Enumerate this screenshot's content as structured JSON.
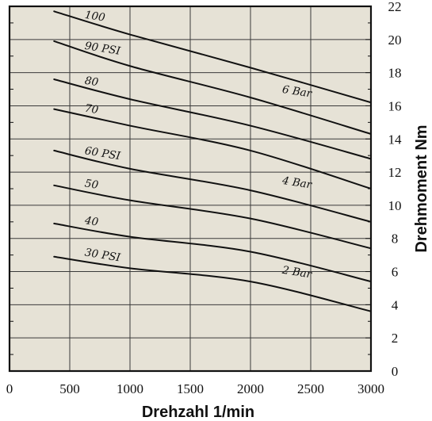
{
  "chart_data": {
    "type": "line",
    "xlabel": "Drehzahl 1/min",
    "ylabel": "Drehmoment Nm",
    "xlim": [
      0,
      3000
    ],
    "ylim": [
      0,
      22
    ],
    "x_ticks": [
      "0",
      "500",
      "1000",
      "1500",
      "2000",
      "2500",
      "3000"
    ],
    "y_ticks": [
      "0",
      "2",
      "4",
      "6",
      "8",
      "10",
      "12",
      "14",
      "16",
      "18",
      "20",
      "22"
    ],
    "y_axis_side": "right",
    "grid": true,
    "background_color": "#e6e2d6",
    "line_color": "#111111",
    "series": [
      {
        "name": "100",
        "x": [
          370,
          1000,
          2000,
          3000
        ],
        "y": [
          21.7,
          20.3,
          18.3,
          16.2
        ]
      },
      {
        "name": "90 PSI",
        "x": [
          370,
          1000,
          2000,
          3000
        ],
        "y": [
          19.9,
          18.4,
          16.5,
          14.3
        ]
      },
      {
        "name": "80",
        "x": [
          370,
          1000,
          2000,
          3000
        ],
        "y": [
          17.6,
          16.4,
          14.8,
          12.8
        ]
      },
      {
        "name": "70",
        "x": [
          370,
          1000,
          2000,
          3000
        ],
        "y": [
          15.8,
          14.8,
          13.3,
          11.0
        ]
      },
      {
        "name": "60 PSI",
        "x": [
          370,
          1000,
          2000,
          3000
        ],
        "y": [
          13.3,
          12.2,
          10.9,
          9.0
        ]
      },
      {
        "name": "50",
        "x": [
          370,
          1000,
          2000,
          3000
        ],
        "y": [
          11.2,
          10.3,
          9.2,
          7.4
        ]
      },
      {
        "name": "40",
        "x": [
          370,
          1000,
          2000,
          3000
        ],
        "y": [
          8.9,
          8.1,
          7.2,
          5.4
        ]
      },
      {
        "name": "30 PSI",
        "x": [
          370,
          1000,
          2000,
          3000
        ],
        "y": [
          6.9,
          6.2,
          5.4,
          3.6
        ]
      }
    ],
    "annotations": [
      {
        "text": "6 Bar",
        "x": 2260,
        "y": 16.8
      },
      {
        "text": "4 Bar",
        "x": 2260,
        "y": 11.3
      },
      {
        "text": "2 Bar",
        "x": 2260,
        "y": 5.9
      }
    ]
  }
}
